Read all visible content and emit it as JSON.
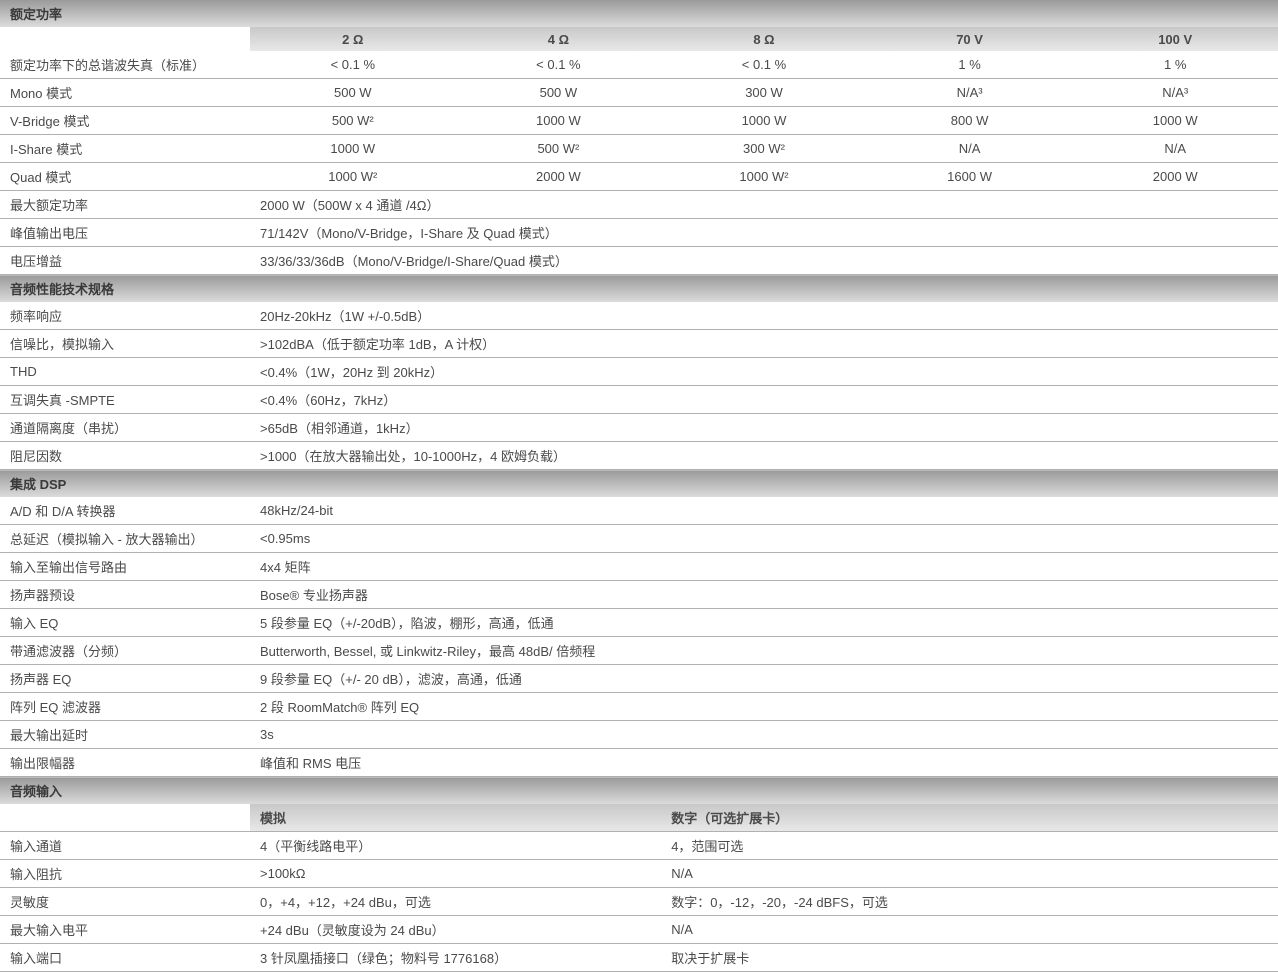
{
  "section1": {
    "title": "额定功率",
    "headers": [
      "2 Ω",
      "4 Ω",
      "8 Ω",
      "70 V",
      "100 V"
    ],
    "rows": [
      {
        "label": "额定功率下的总谐波失真（标准）",
        "cells": [
          "< 0.1 %",
          "< 0.1 %",
          "< 0.1 %",
          "1 %",
          "1 %"
        ]
      },
      {
        "label": "Mono 模式",
        "cells": [
          "500 W",
          "500 W",
          "300 W",
          "N/A³",
          "N/A³"
        ]
      },
      {
        "label": "V-Bridge 模式",
        "cells": [
          "500 W²",
          "1000 W",
          "1000 W",
          "800 W",
          "1000 W"
        ]
      },
      {
        "label": "I-Share 模式",
        "cells": [
          "1000 W",
          "500 W²",
          "300 W²",
          "N/A",
          "N/A"
        ]
      },
      {
        "label": "Quad 模式",
        "cells": [
          "1000 W²",
          "2000 W",
          "1000 W²",
          "1600 W",
          "2000 W"
        ]
      }
    ],
    "spanRows": [
      {
        "label": "最大额定功率",
        "value": "2000 W（500W x 4 通道 /4Ω）"
      },
      {
        "label": "峰值输出电压",
        "value": "71/142V（Mono/V-Bridge，I-Share 及 Quad 模式）"
      },
      {
        "label": "电压增益",
        "value": "33/36/33/36dB（Mono/V-Bridge/I-Share/Quad 模式）"
      }
    ]
  },
  "section2": {
    "title": "音频性能技术规格",
    "rows": [
      {
        "label": "频率响应",
        "value": "20Hz-20kHz（1W +/-0.5dB）"
      },
      {
        "label": "信噪比，模拟输入",
        "value": ">102dBA（低于额定功率 1dB，A 计权）"
      },
      {
        "label": "THD",
        "value": "<0.4%（1W，20Hz 到 20kHz）"
      },
      {
        "label": "互调失真 -SMPTE",
        "value": "<0.4%（60Hz，7kHz）"
      },
      {
        "label": "通道隔离度（串扰）",
        "value": ">65dB（相邻通道，1kHz）"
      },
      {
        "label": "阻尼因数",
        "value": ">1000（在放大器输出处，10-1000Hz，4 欧姆负载）"
      }
    ]
  },
  "section3": {
    "title": "集成 DSP",
    "rows": [
      {
        "label": "A/D 和 D/A 转换器",
        "value": "48kHz/24-bit"
      },
      {
        "label": "总延迟（模拟输入 - 放大器输出）",
        "value": "<0.95ms"
      },
      {
        "label": "输入至输出信号路由",
        "value": "4x4 矩阵"
      },
      {
        "label": "扬声器预设",
        "value": "Bose® 专业扬声器"
      },
      {
        "label": "输入 EQ",
        "value": "5 段参量 EQ（+/-20dB），陷波，棚形，高通，低通"
      },
      {
        "label": "带通滤波器（分频）",
        "value": "Butterworth, Bessel, 或 Linkwitz-Riley，最高 48dB/ 倍频程"
      },
      {
        "label": "扬声器 EQ",
        "value": "9 段参量 EQ（+/- 20 dB），滤波，高通，低通"
      },
      {
        "label": "阵列 EQ 滤波器",
        "value": "2 段 RoomMatch® 阵列 EQ"
      },
      {
        "label": "最大输出延时",
        "value": "3s"
      },
      {
        "label": "输出限幅器",
        "value": "峰值和 RMS 电压"
      }
    ]
  },
  "section4": {
    "title": "音频输入",
    "headers": [
      "模拟",
      "数字（可选扩展卡）"
    ],
    "rows": [
      {
        "label": "输入通道",
        "cells": [
          "4（平衡线路电平）",
          "4，范围可选"
        ]
      },
      {
        "label": "输入阻抗",
        "cells": [
          ">100kΩ",
          "N/A"
        ]
      },
      {
        "label": "灵敏度",
        "cells": [
          "0，+4，+12，+24 dBu，可选",
          "数字：0，-12，-20，-24 dBFS，可选"
        ]
      },
      {
        "label": "最大输入电平",
        "cells": [
          "+24 dBu（灵敏度设为 24 dBu）",
          "N/A"
        ]
      },
      {
        "label": "输入端口",
        "cells": [
          "3 针凤凰插接口（绿色；物料号 1776168）",
          "取决于扩展卡"
        ]
      }
    ]
  }
}
